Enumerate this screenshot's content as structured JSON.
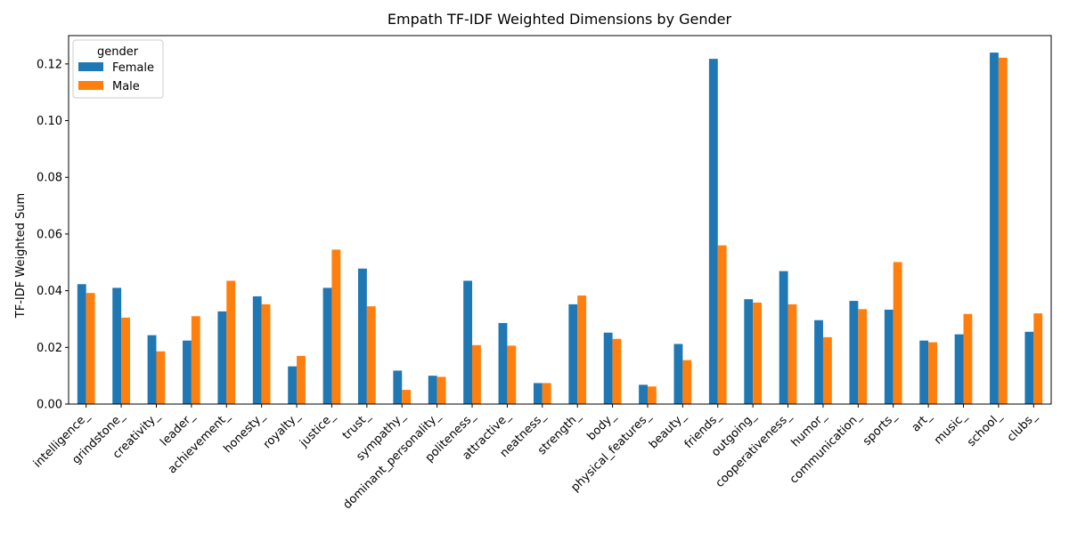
{
  "chart_data": {
    "type": "bar",
    "title": "Empath TF-IDF Weighted Dimensions by Gender",
    "xlabel": "",
    "ylabel": "TF-IDF Weighted Sum",
    "ylim": [
      0,
      0.13
    ],
    "yticks": [
      "0.00",
      "0.02",
      "0.04",
      "0.06",
      "0.08",
      "0.10",
      "0.12"
    ],
    "ytick_values": [
      0,
      0.02,
      0.04,
      0.06,
      0.08,
      0.1,
      0.12
    ],
    "legend": {
      "title": "gender",
      "placement": "top-left"
    },
    "categories": [
      "intelligence_",
      "grindstone_",
      "creativity_",
      "leader_",
      "achievement_",
      "honesty_",
      "royalty_",
      "justice_",
      "trust_",
      "sympathy_",
      "dominant_personality_",
      "politeness_",
      "attractive_",
      "neatness_",
      "strength_",
      "body_",
      "physical_features_",
      "beauty_",
      "friends_",
      "outgoing_",
      "cooperativeness_",
      "humor_",
      "communication_",
      "sports_",
      "art_",
      "music_",
      "school_",
      "clubs_"
    ],
    "series": [
      {
        "name": "Female",
        "color": "#1f77b4",
        "values": [
          0.0423,
          0.041,
          0.0243,
          0.0224,
          0.0327,
          0.038,
          0.0133,
          0.041,
          0.0478,
          0.0118,
          0.01,
          0.0435,
          0.0286,
          0.0074,
          0.0352,
          0.0252,
          0.0068,
          0.0212,
          0.1218,
          0.037,
          0.0469,
          0.0296,
          0.0364,
          0.0333,
          0.0224,
          0.0246,
          0.124,
          0.0255
        ]
      },
      {
        "name": "Male",
        "color": "#ff7f0e",
        "values": [
          0.0392,
          0.0305,
          0.0186,
          0.031,
          0.0435,
          0.0352,
          0.017,
          0.0545,
          0.0345,
          0.005,
          0.0096,
          0.0208,
          0.0206,
          0.0074,
          0.0383,
          0.023,
          0.0062,
          0.0155,
          0.056,
          0.0358,
          0.0352,
          0.0236,
          0.0335,
          0.0501,
          0.0218,
          0.0318,
          0.1222,
          0.032
        ]
      }
    ]
  }
}
